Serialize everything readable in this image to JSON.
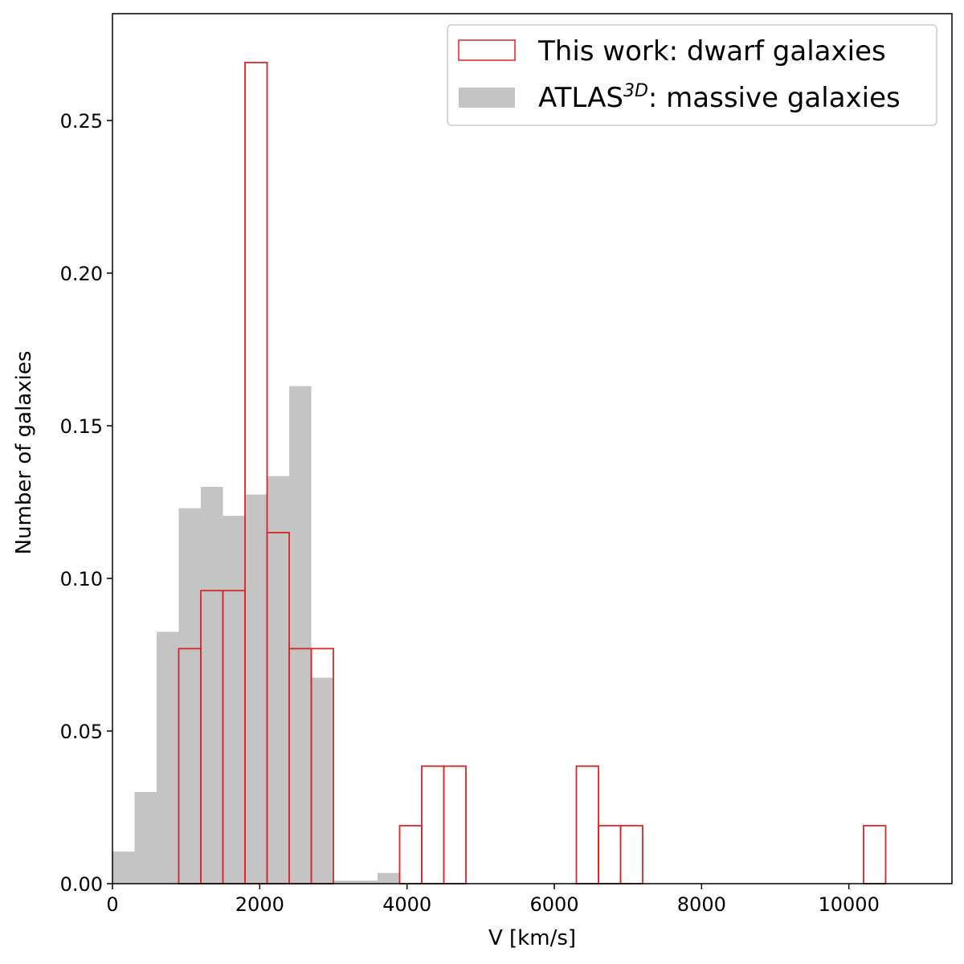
{
  "chart_data": {
    "type": "bar",
    "xlabel": "V [km/s]",
    "ylabel": "Number of galaxies",
    "xlim": [
      0,
      11400
    ],
    "ylim": [
      0,
      0.285
    ],
    "xticks": [
      0,
      2000,
      4000,
      6000,
      8000,
      10000
    ],
    "xtick_labels": [
      "0",
      "2000",
      "4000",
      "6000",
      "8000",
      "10000"
    ],
    "yticks": [
      0.0,
      0.05,
      0.1,
      0.15,
      0.2,
      0.25
    ],
    "ytick_labels": [
      "0.00",
      "0.05",
      "0.10",
      "0.15",
      "0.20",
      "0.25"
    ],
    "grid": false,
    "legend_position": "top-right",
    "series": [
      {
        "name": "ATLAS",
        "name_superscript": "3D",
        "name_suffix": ": massive galaxies",
        "style": "filled",
        "color": "#c4c4c4",
        "bins": [
          {
            "x0": 0,
            "x1": 300,
            "value": 0.0105
          },
          {
            "x0": 300,
            "x1": 600,
            "value": 0.03
          },
          {
            "x0": 600,
            "x1": 900,
            "value": 0.0825
          },
          {
            "x0": 900,
            "x1": 1200,
            "value": 0.123
          },
          {
            "x0": 1200,
            "x1": 1500,
            "value": 0.13
          },
          {
            "x0": 1500,
            "x1": 1800,
            "value": 0.1205
          },
          {
            "x0": 1800,
            "x1": 2100,
            "value": 0.1275
          },
          {
            "x0": 2100,
            "x1": 2400,
            "value": 0.1335
          },
          {
            "x0": 2400,
            "x1": 2700,
            "value": 0.163
          },
          {
            "x0": 2700,
            "x1": 3000,
            "value": 0.0675
          },
          {
            "x0": 3000,
            "x1": 3300,
            "value": 0.001
          },
          {
            "x0": 3300,
            "x1": 3600,
            "value": 0.001
          },
          {
            "x0": 3600,
            "x1": 3900,
            "value": 0.0035
          }
        ]
      },
      {
        "name": "This work: dwarf galaxies",
        "style": "outline",
        "color": "#d62728",
        "bins": [
          {
            "x0": 900,
            "x1": 1200,
            "value": 0.077
          },
          {
            "x0": 1200,
            "x1": 1500,
            "value": 0.096
          },
          {
            "x0": 1500,
            "x1": 1800,
            "value": 0.096
          },
          {
            "x0": 1800,
            "x1": 2100,
            "value": 0.269
          },
          {
            "x0": 2100,
            "x1": 2400,
            "value": 0.115
          },
          {
            "x0": 2400,
            "x1": 2700,
            "value": 0.077
          },
          {
            "x0": 2700,
            "x1": 3000,
            "value": 0.077
          },
          {
            "x0": 3900,
            "x1": 4200,
            "value": 0.019
          },
          {
            "x0": 4200,
            "x1": 4500,
            "value": 0.0385
          },
          {
            "x0": 4500,
            "x1": 4800,
            "value": 0.0385
          },
          {
            "x0": 6300,
            "x1": 6600,
            "value": 0.0385
          },
          {
            "x0": 6600,
            "x1": 6900,
            "value": 0.019
          },
          {
            "x0": 6900,
            "x1": 7200,
            "value": 0.019
          },
          {
            "x0": 10200,
            "x1": 10500,
            "value": 0.019
          }
        ]
      }
    ]
  }
}
